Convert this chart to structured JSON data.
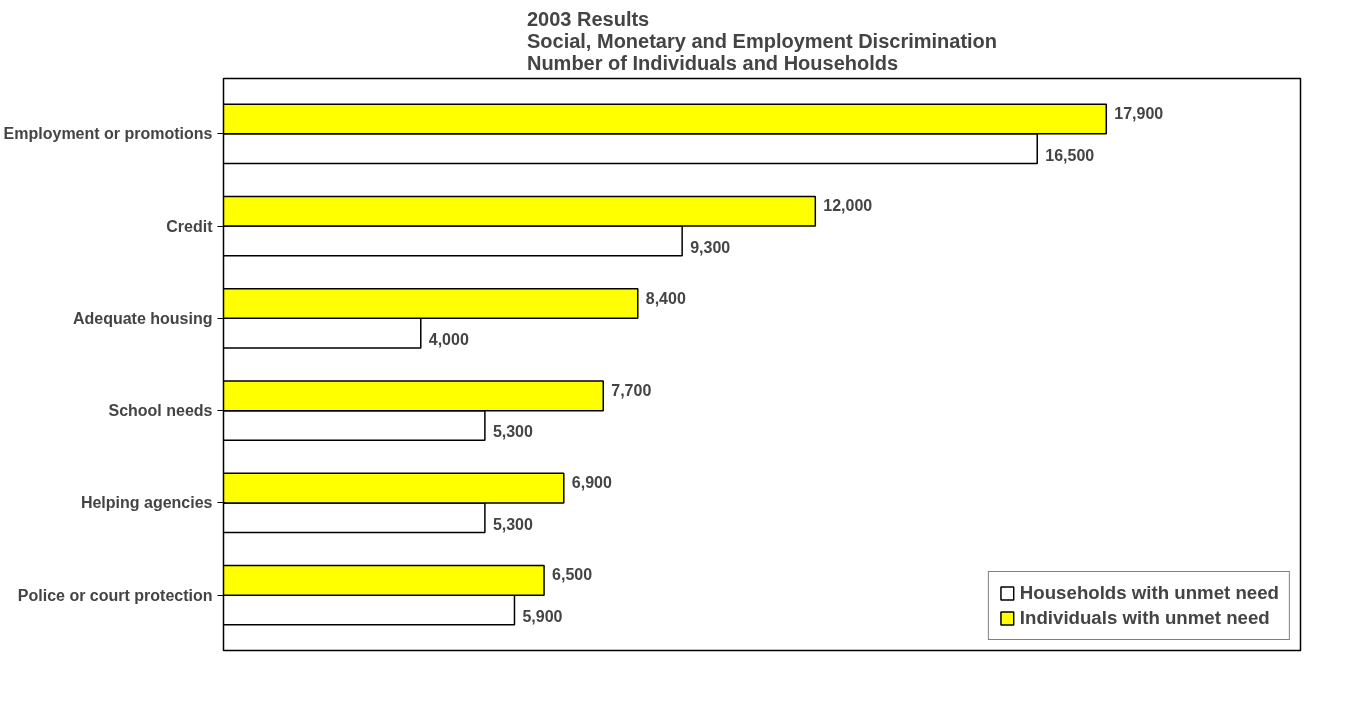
{
  "chart_data": {
    "type": "bar",
    "orientation": "horizontal",
    "title": "2003 Results\nSocial, Monetary and Employment Discrimination\nNumber of Individuals and Households",
    "categories": [
      "Employment or promotions",
      "Credit",
      "Adequate housing",
      "School needs",
      "Helping agencies",
      "Police or court protection"
    ],
    "series": [
      {
        "name": "Households with unmet need",
        "color": "#ffffff",
        "values": [
          16500,
          9300,
          4000,
          5300,
          5300,
          5900
        ],
        "value_labels": [
          "16,500",
          "9,300",
          "4,000",
          "5,300",
          "5,300",
          "5,900"
        ]
      },
      {
        "name": "Individuals with unmet need",
        "color": "#ffff00",
        "values": [
          17900,
          12000,
          8400,
          7700,
          6900,
          6500
        ],
        "value_labels": [
          "17,900",
          "12,000",
          "8,400",
          "7,700",
          "6,900",
          "6,500"
        ]
      }
    ],
    "legend": "bottom right",
    "grid": false
  }
}
